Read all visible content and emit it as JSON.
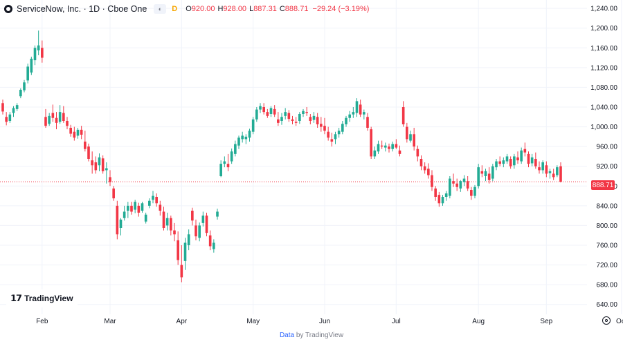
{
  "header": {
    "title": "ServiceNow, Inc. · 1D · Cboe One",
    "market_status": "D",
    "open_label": "O",
    "open": "920.00",
    "high_label": "H",
    "high": "928.00",
    "low_label": "L",
    "low": "887.31",
    "close_label": "C",
    "close": "888.71",
    "change": "−29.24 (−3.19%)"
  },
  "branding": {
    "logo_text": "TradingView",
    "footer_data": "Data",
    "footer_by": " by TradingView"
  },
  "last_price_label": "888.71",
  "colors": {
    "up": "#22ab94",
    "down": "#f23645",
    "grid": "#f0f3fa",
    "price_line": "#f23645",
    "axis_text": "#131722"
  },
  "chart_data": {
    "type": "candlestick",
    "y_ticks": [
      640,
      680,
      720,
      760,
      800,
      840,
      880,
      920,
      960,
      1000,
      1040,
      1080,
      1120,
      1160,
      1200,
      1240
    ],
    "y_tick_labels": [
      "640.00",
      "680.00",
      "720.00",
      "760.00",
      "800.00",
      "840.00",
      "880.00",
      "920.00",
      "960.00",
      "1,000.00",
      "1,040.00",
      "1,080.00",
      "1,120.00",
      "1,160.00",
      "1,200.00",
      "1,240.00"
    ],
    "ylim": [
      620,
      1257
    ],
    "x_month_labels": [
      {
        "label": "Feb",
        "i": 11
      },
      {
        "label": "Mar",
        "i": 30
      },
      {
        "label": "Apr",
        "i": 50
      },
      {
        "label": "May",
        "i": 70
      },
      {
        "label": "Jun",
        "i": 90
      },
      {
        "label": "Jul",
        "i": 110
      },
      {
        "label": "Aug",
        "i": 133
      },
      {
        "label": "Sep",
        "i": 152
      },
      {
        "label": "Oct",
        "i": 173
      }
    ],
    "last_price": 888.71,
    "candles": [
      [
        1048,
        1055,
        1025,
        1031
      ],
      [
        1020,
        1030,
        1003,
        1010
      ],
      [
        1012,
        1030,
        1008,
        1025
      ],
      [
        1028,
        1042,
        1020,
        1038
      ],
      [
        1036,
        1048,
        1032,
        1044
      ],
      [
        1062,
        1078,
        1058,
        1075
      ],
      [
        1074,
        1095,
        1070,
        1090
      ],
      [
        1094,
        1128,
        1088,
        1122
      ],
      [
        1110,
        1142,
        1105,
        1138
      ],
      [
        1135,
        1165,
        1125,
        1160
      ],
      [
        1155,
        1195,
        1145,
        1165
      ],
      [
        1160,
        1175,
        1130,
        1140
      ],
      [
        1020,
        1036,
        998,
        1002
      ],
      [
        1006,
        1028,
        1002,
        1022
      ],
      [
        1028,
        1045,
        1010,
        1018
      ],
      [
        1018,
        1030,
        995,
        1008
      ],
      [
        1010,
        1044,
        1006,
        1030
      ],
      [
        1028,
        1042,
        1008,
        1012
      ],
      [
        1012,
        1020,
        995,
        1002
      ],
      [
        998,
        1004,
        980,
        986
      ],
      [
        990,
        1000,
        972,
        978
      ],
      [
        982,
        998,
        976,
        994
      ],
      [
        994,
        1002,
        975,
        984
      ],
      [
        970,
        992,
        950,
        955
      ],
      [
        960,
        966,
        930,
        935
      ],
      [
        932,
        950,
        905,
        922
      ],
      [
        928,
        940,
        905,
        912
      ],
      [
        922,
        946,
        910,
        938
      ],
      [
        936,
        942,
        905,
        910
      ],
      [
        912,
        928,
        885,
        916
      ],
      [
        898,
        912,
        880,
        888
      ],
      [
        875,
        880,
        850,
        855
      ],
      [
        840,
        850,
        772,
        782
      ],
      [
        795,
        815,
        780,
        812
      ],
      [
        815,
        840,
        810,
        828
      ],
      [
        830,
        848,
        815,
        840
      ],
      [
        840,
        848,
        822,
        828
      ],
      [
        832,
        852,
        825,
        848
      ],
      [
        840,
        846,
        818,
        826
      ],
      [
        830,
        848,
        826,
        845
      ],
      [
        808,
        826,
        804,
        822
      ],
      [
        840,
        855,
        835,
        850
      ],
      [
        852,
        870,
        845,
        860
      ],
      [
        858,
        865,
        838,
        845
      ],
      [
        842,
        850,
        820,
        830
      ],
      [
        828,
        838,
        790,
        795
      ],
      [
        800,
        826,
        790,
        815
      ],
      [
        815,
        820,
        780,
        790
      ],
      [
        790,
        805,
        768,
        782
      ],
      [
        770,
        788,
        720,
        730
      ],
      [
        720,
        760,
        685,
        695
      ],
      [
        728,
        775,
        710,
        765
      ],
      [
        760,
        792,
        750,
        782
      ],
      [
        830,
        836,
        800,
        810
      ],
      [
        800,
        812,
        770,
        778
      ],
      [
        775,
        806,
        768,
        800
      ],
      [
        805,
        828,
        798,
        820
      ],
      [
        820,
        826,
        778,
        785
      ],
      [
        780,
        790,
        750,
        758
      ],
      [
        752,
        772,
        745,
        765
      ],
      [
        818,
        834,
        812,
        828
      ],
      [
        900,
        932,
        898,
        925
      ],
      [
        925,
        940,
        918,
        930
      ],
      [
        925,
        945,
        910,
        918
      ],
      [
        930,
        956,
        925,
        950
      ],
      [
        945,
        972,
        940,
        965
      ],
      [
        962,
        982,
        955,
        978
      ],
      [
        975,
        990,
        968,
        982
      ],
      [
        975,
        985,
        965,
        980
      ],
      [
        978,
        996,
        970,
        992
      ],
      [
        990,
        1020,
        985,
        1015
      ],
      [
        1015,
        1040,
        1010,
        1035
      ],
      [
        1035,
        1048,
        1028,
        1042
      ],
      [
        1040,
        1048,
        1025,
        1030
      ],
      [
        1030,
        1036,
        1018,
        1022
      ],
      [
        1026,
        1042,
        1020,
        1038
      ],
      [
        1036,
        1044,
        1020,
        1025
      ],
      [
        1015,
        1030,
        1002,
        1008
      ],
      [
        1012,
        1028,
        1004,
        1020
      ],
      [
        1022,
        1038,
        1015,
        1030
      ],
      [
        1028,
        1034,
        1010,
        1016
      ],
      [
        1015,
        1022,
        1005,
        1012
      ],
      [
        1010,
        1020,
        1002,
        1008
      ],
      [
        1012,
        1030,
        1006,
        1026
      ],
      [
        1026,
        1036,
        1020,
        1032
      ],
      [
        1030,
        1040,
        1022,
        1028
      ],
      [
        1020,
        1026,
        1005,
        1012
      ],
      [
        1014,
        1030,
        1008,
        1022
      ],
      [
        1020,
        1028,
        998,
        1005
      ],
      [
        1006,
        1020,
        990,
        1000
      ],
      [
        1002,
        1018,
        985,
        992
      ],
      [
        990,
        1000,
        972,
        978
      ],
      [
        975,
        988,
        960,
        970
      ],
      [
        975,
        990,
        965,
        985
      ],
      [
        985,
        998,
        978,
        992
      ],
      [
        990,
        1012,
        985,
        1006
      ],
      [
        1005,
        1022,
        1000,
        1018
      ],
      [
        1018,
        1032,
        1010,
        1025
      ],
      [
        1025,
        1040,
        1018,
        1030
      ],
      [
        1028,
        1058,
        1020,
        1052
      ],
      [
        1045,
        1055,
        1020,
        1025
      ],
      [
        1025,
        1035,
        1015,
        1030
      ],
      [
        1020,
        1028,
        992,
        998
      ],
      [
        995,
        1000,
        935,
        940
      ],
      [
        940,
        960,
        935,
        952
      ],
      [
        950,
        972,
        945,
        965
      ],
      [
        962,
        972,
        955,
        960
      ],
      [
        958,
        968,
        950,
        962
      ],
      [
        960,
        966,
        948,
        955
      ],
      [
        955,
        970,
        950,
        965
      ],
      [
        965,
        975,
        955,
        958
      ],
      [
        952,
        962,
        940,
        945
      ],
      [
        1040,
        1052,
        1000,
        1005
      ],
      [
        1000,
        1008,
        968,
        975
      ],
      [
        972,
        992,
        968,
        985
      ],
      [
        985,
        998,
        952,
        960
      ],
      [
        955,
        962,
        930,
        940
      ],
      [
        935,
        942,
        912,
        920
      ],
      [
        920,
        928,
        905,
        912
      ],
      [
        915,
        926,
        895,
        902
      ],
      [
        902,
        912,
        870,
        878
      ],
      [
        875,
        880,
        850,
        858
      ],
      [
        862,
        868,
        838,
        845
      ],
      [
        845,
        862,
        840,
        858
      ],
      [
        858,
        870,
        850,
        865
      ],
      [
        860,
        900,
        855,
        895
      ],
      [
        890,
        905,
        878,
        885
      ],
      [
        885,
        895,
        870,
        878
      ],
      [
        875,
        892,
        868,
        890
      ],
      [
        888,
        902,
        880,
        895
      ],
      [
        890,
        900,
        870,
        875
      ],
      [
        872,
        878,
        852,
        860
      ],
      [
        860,
        882,
        855,
        878
      ],
      [
        880,
        925,
        875,
        918
      ],
      [
        910,
        922,
        898,
        905
      ],
      [
        900,
        915,
        890,
        910
      ],
      [
        905,
        918,
        885,
        892
      ],
      [
        895,
        925,
        890,
        920
      ],
      [
        918,
        935,
        912,
        930
      ],
      [
        930,
        940,
        920,
        925
      ],
      [
        925,
        938,
        918,
        932
      ],
      [
        930,
        945,
        925,
        940
      ],
      [
        935,
        940,
        915,
        920
      ],
      [
        922,
        945,
        915,
        940
      ],
      [
        938,
        950,
        925,
        932
      ],
      [
        930,
        958,
        925,
        952
      ],
      [
        955,
        968,
        940,
        948
      ],
      [
        945,
        950,
        918,
        925
      ],
      [
        926,
        945,
        920,
        938
      ],
      [
        935,
        948,
        915,
        920
      ],
      [
        918,
        930,
        905,
        912
      ],
      [
        912,
        932,
        905,
        928
      ],
      [
        922,
        930,
        898,
        905
      ],
      [
        906,
        915,
        895,
        910
      ],
      [
        905,
        915,
        892,
        898
      ],
      [
        902,
        922,
        898,
        918
      ],
      [
        920,
        928,
        887.31,
        888.71
      ]
    ]
  }
}
